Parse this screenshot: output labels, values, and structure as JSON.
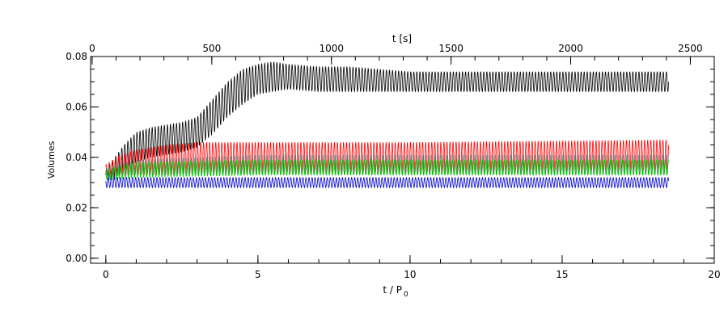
{
  "chart_data": {
    "type": "line",
    "title": "",
    "xlabel": "t / P",
    "xlabel_sub": "0",
    "ylabel": "Volumes",
    "x2label": "t [s]",
    "xlim": [
      -0.5,
      20
    ],
    "ylim": [
      -0.002,
      0.08
    ],
    "x2lim": [
      -6.5,
      2600
    ],
    "x_ticks": [
      0,
      5,
      10,
      15,
      20
    ],
    "x_tick_labels": [
      "0",
      "5",
      "10",
      "15",
      "20"
    ],
    "y_ticks": [
      0.0,
      0.02,
      0.04,
      0.06,
      0.08
    ],
    "y_tick_labels": [
      "0.00",
      "0.02",
      "0.04",
      "0.06",
      "0.08"
    ],
    "x2_ticks": [
      0,
      500,
      1000,
      1500,
      2000,
      2500
    ],
    "x2_tick_labels": [
      "0",
      "500",
      "1000",
      "1500",
      "2000",
      "2500"
    ],
    "grid": false,
    "oscillation_period": 0.1,
    "x_end": 18.5,
    "series": [
      {
        "color": "#000000",
        "x": [
          0,
          0.3,
          0.6,
          1.0,
          1.5,
          2.0,
          2.5,
          3.0,
          3.5,
          4.0,
          4.5,
          5.0,
          5.5,
          6.0,
          7.0,
          8.0,
          10.0,
          12.0,
          14.0,
          16.0,
          18.5
        ],
        "mid": [
          0.033,
          0.036,
          0.04,
          0.044,
          0.046,
          0.047,
          0.048,
          0.05,
          0.056,
          0.063,
          0.068,
          0.071,
          0.072,
          0.072,
          0.071,
          0.071,
          0.07,
          0.07,
          0.07,
          0.07,
          0.07
        ],
        "amp": [
          0.002,
          0.004,
          0.005,
          0.006,
          0.006,
          0.006,
          0.006,
          0.006,
          0.007,
          0.007,
          0.007,
          0.006,
          0.006,
          0.005,
          0.005,
          0.005,
          0.004,
          0.004,
          0.004,
          0.004,
          0.004
        ]
      },
      {
        "color": "#ff0000",
        "x": [
          0,
          0.5,
          1.0,
          2.0,
          3.0,
          5.0,
          10.0,
          18.5
        ],
        "mid": [
          0.035,
          0.037,
          0.038,
          0.039,
          0.04,
          0.04,
          0.04,
          0.041
        ],
        "amp": [
          0.002,
          0.004,
          0.005,
          0.006,
          0.006,
          0.006,
          0.006,
          0.006
        ]
      },
      {
        "color": "#808080",
        "x": [
          0,
          1.0,
          5.0,
          18.5
        ],
        "mid": [
          0.034,
          0.036,
          0.037,
          0.037
        ],
        "amp": [
          0.002,
          0.003,
          0.004,
          0.004
        ]
      },
      {
        "color": "#00cc00",
        "x": [
          0,
          1.0,
          5.0,
          18.5
        ],
        "mid": [
          0.033,
          0.035,
          0.036,
          0.036
        ],
        "amp": [
          0.002,
          0.003,
          0.003,
          0.003
        ]
      },
      {
        "color": "#0000cc",
        "x": [
          0,
          1.0,
          5.0,
          18.5
        ],
        "mid": [
          0.03,
          0.03,
          0.03,
          0.03
        ],
        "amp": [
          0.002,
          0.002,
          0.002,
          0.002
        ]
      }
    ]
  }
}
